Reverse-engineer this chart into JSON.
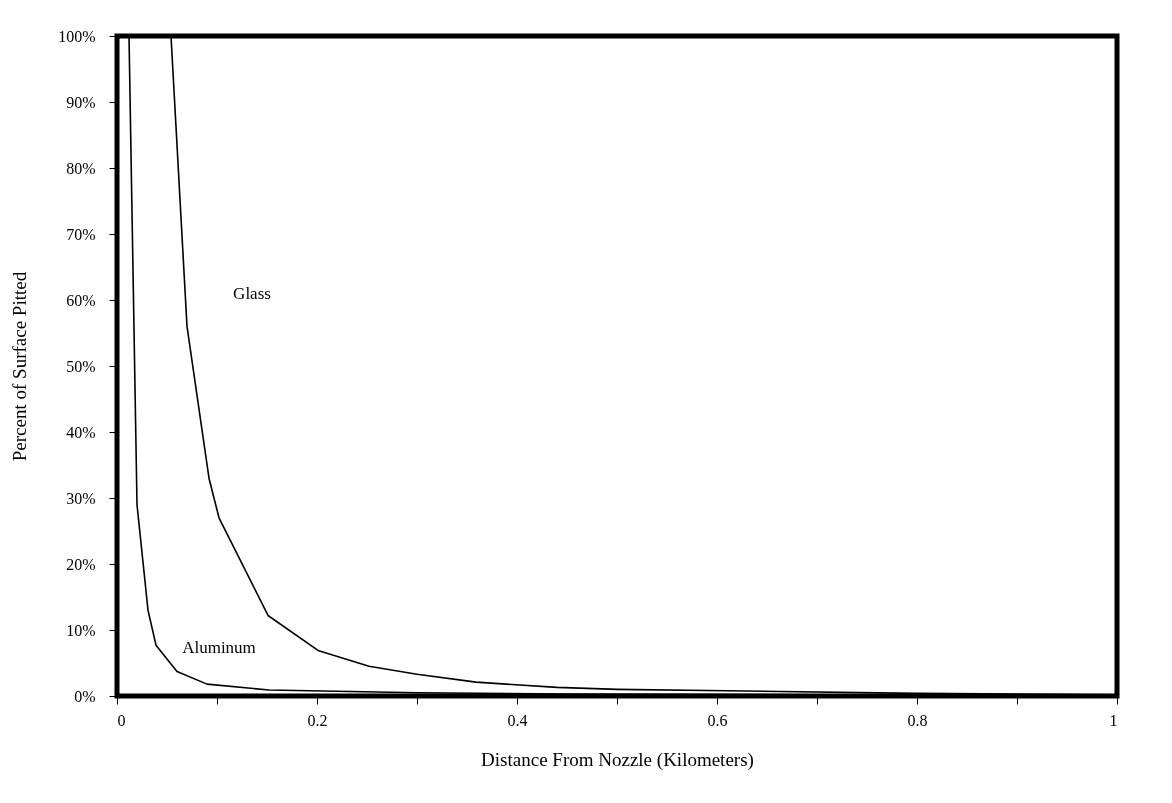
{
  "chart_data": {
    "type": "line",
    "xlabel": "Distance From Nozzle (Kilometers)",
    "ylabel": "Percent of Surface Pitted",
    "series": [
      {
        "color": "#000000",
        "x": [
          0.054,
          0.07,
          0.092,
          0.102,
          0.151,
          0.201,
          0.252,
          0.3,
          0.359,
          0.44,
          0.5,
          0.61,
          0.8,
          1.0
        ],
        "values": [
          100,
          56,
          33,
          27,
          12.2,
          6.9,
          4.5,
          3.3,
          2.1,
          1.3,
          1.0,
          0.8,
          0.4,
          0.2
        ]
      },
      {
        "color": "#000000",
        "x": [
          0.012,
          0.02,
          0.031,
          0.039,
          0.06,
          0.09,
          0.152,
          0.3,
          0.45,
          0.7,
          1.0
        ],
        "values": [
          100,
          29,
          13,
          7.7,
          3.7,
          1.8,
          0.9,
          0.5,
          0.3,
          0.2,
          0.1
        ]
      }
    ],
    "annotations": [
      "Glass",
      "Aluminum"
    ],
    "xlim": [
      0,
      1
    ],
    "xticks": [
      0,
      {
        "value": 0.1,
        "label": null
      },
      0.2,
      {
        "value": 0.3,
        "label": null
      },
      0.4,
      {
        "value": 0.5,
        "label": null
      },
      0.6,
      {
        "value": 0.7,
        "label": null
      },
      0.8,
      {
        "value": 0.9,
        "label": null
      },
      1
    ],
    "ylim": [
      0,
      100
    ],
    "yticks": [
      {
        "value": 0,
        "label": "0%"
      },
      {
        "value": 10,
        "label": "10%"
      },
      {
        "value": 20,
        "label": "20%"
      },
      {
        "value": 30,
        "label": "30%"
      },
      {
        "value": 40,
        "label": "40%"
      },
      {
        "value": 50,
        "label": "50%"
      },
      {
        "value": 60,
        "label": "60%"
      },
      {
        "value": 70,
        "label": "70%"
      },
      {
        "value": 80,
        "label": "80%"
      },
      {
        "value": 90,
        "label": "90%"
      },
      {
        "value": 100,
        "label": "100%"
      }
    ],
    "grid": false,
    "marker": "none",
    "line_style": "solid"
  }
}
